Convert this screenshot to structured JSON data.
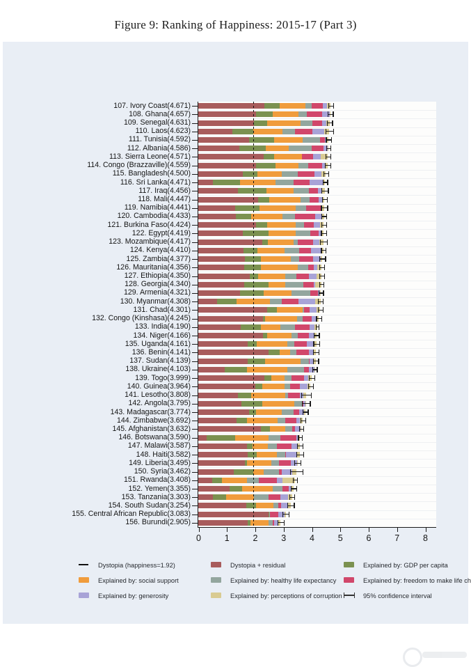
{
  "figure": {
    "title": "Figure 9: Ranking of Happiness: 2015-17 (Part 3)"
  },
  "chart_data": {
    "type": "bar",
    "orientation": "horizontal-stacked",
    "title": "Figure 9: Ranking of Happiness: 2015-17 (Part 3)",
    "xlabel": "",
    "ylabel": "",
    "xlim": [
      0,
      8
    ],
    "xtick_labels": [
      "0",
      "1",
      "2",
      "3",
      "4",
      "5",
      "6",
      "7",
      "8"
    ],
    "grid": "faint horizontal row lines",
    "dystopia_line_value": 1.92,
    "series_order": [
      "dystopia_residual",
      "gdp",
      "social",
      "health",
      "freedom",
      "generosity",
      "corruption"
    ],
    "series_names": {
      "dystopia_residual": "Dystopia + residual",
      "gdp": "Explained by: GDP per capita",
      "social": "Explained by: social support",
      "health": "Explained by: healthy life expectancy",
      "freedom": "Explained by: freedom to make life choices",
      "generosity": "Explained by: generosity",
      "corruption": "Explained by: perceptions of corruption"
    },
    "colors": {
      "dystopia_residual": "#a85c5c",
      "gdp": "#7b9150",
      "social": "#f09c3c",
      "health": "#93a69e",
      "freedom": "#d1476b",
      "generosity": "#a8a3d7",
      "corruption": "#d9cb92",
      "panel_background": "#e9eef5",
      "plot_background": "#fdfdfc",
      "axis": "#1a1a1a"
    },
    "countries": [
      {
        "rank": 107,
        "name": "Ivory Coast",
        "score": "4.671",
        "values": [
          2.33,
          0.54,
          0.9,
          0.23,
          0.4,
          0.15,
          0.121
        ],
        "ci": 0.09
      },
      {
        "rank": 108,
        "name": "Ghana",
        "score": "4.657",
        "values": [
          2.03,
          0.59,
          0.91,
          0.31,
          0.53,
          0.26,
          0.027
        ],
        "ci": 0.09
      },
      {
        "rank": 109,
        "name": "Senegal",
        "score": "4.631",
        "values": [
          1.96,
          0.48,
          1.18,
          0.41,
          0.33,
          0.15,
          0.121
        ],
        "ci": 0.09
      },
      {
        "rank": 110,
        "name": "Laos",
        "score": "4.623",
        "values": [
          1.21,
          0.72,
          1.03,
          0.44,
          0.63,
          0.42,
          0.173
        ],
        "ci": 0.13
      },
      {
        "rank": 111,
        "name": "Tunisia",
        "score": "4.592",
        "values": [
          1.78,
          0.89,
          1.01,
          0.61,
          0.17,
          0.06,
          0.072
        ],
        "ci": 0.09
      },
      {
        "rank": 112,
        "name": "Albania",
        "score": "4.586",
        "values": [
          1.46,
          0.92,
          0.82,
          0.79,
          0.42,
          0.15,
          0.026
        ],
        "ci": 0.08
      },
      {
        "rank": 113,
        "name": "Sierra Leone",
        "score": "4.571",
        "values": [
          2.3,
          0.37,
          0.98,
          0.005,
          0.39,
          0.275,
          0.251
        ],
        "ci": 0.09
      },
      {
        "rank": 114,
        "name": "Congo (Brazzaville)",
        "score": "4.559",
        "values": [
          2.04,
          0.68,
          0.81,
          0.34,
          0.51,
          0.09,
          0.089
        ],
        "ci": 0.1
      },
      {
        "rank": 115,
        "name": "Bangladesh",
        "score": "4.500",
        "values": [
          1.56,
          0.53,
          0.85,
          0.58,
          0.58,
          0.24,
          0.16
        ],
        "ci": 0.08
      },
      {
        "rank": 116,
        "name": "Sri Lanka",
        "score": "4.471",
        "values": [
          0.52,
          0.95,
          1.26,
          0.63,
          0.56,
          0.5,
          0.051
        ],
        "ci": 0.08
      },
      {
        "rank": 117,
        "name": "Iraq",
        "score": "4.456",
        "values": [
          1.39,
          1.01,
          0.97,
          0.54,
          0.3,
          0.15,
          0.096
        ],
        "ci": 0.12
      },
      {
        "rank": 118,
        "name": "Mali",
        "score": "4.447",
        "values": [
          2.12,
          0.39,
          1.1,
          0.31,
          0.33,
          0.15,
          0.047
        ],
        "ci": 0.09
      },
      {
        "rank": 119,
        "name": "Namibia",
        "score": "4.441",
        "values": [
          1.29,
          0.87,
          1.28,
          0.37,
          0.52,
          0.05,
          0.061
        ],
        "ci": 0.11
      },
      {
        "rank": 120,
        "name": "Cambodia",
        "score": "4.433",
        "values": [
          1.32,
          0.55,
          1.09,
          0.46,
          0.7,
          0.26,
          0.053
        ],
        "ci": 0.09
      },
      {
        "rank": 121,
        "name": "Burkina Faso",
        "score": "4.424",
        "values": [
          2.04,
          0.39,
          1.0,
          0.3,
          0.35,
          0.21,
          0.134
        ],
        "ci": 0.09
      },
      {
        "rank": 122,
        "name": "Egypt",
        "score": "4.419",
        "values": [
          1.57,
          0.92,
          0.94,
          0.52,
          0.29,
          0.08,
          0.099
        ],
        "ci": 0.09
      },
      {
        "rank": 123,
        "name": "Mozambique",
        "score": "4.417",
        "values": [
          2.25,
          0.2,
          0.9,
          0.17,
          0.53,
          0.21,
          0.157
        ],
        "ci": 0.13
      },
      {
        "rank": 124,
        "name": "Kenya",
        "score": "4.410",
        "values": [
          1.6,
          0.49,
          0.95,
          0.51,
          0.43,
          0.37,
          0.06
        ],
        "ci": 0.08
      },
      {
        "rank": 125,
        "name": "Zambia",
        "score": "4.377",
        "values": [
          1.65,
          0.56,
          1.05,
          0.3,
          0.5,
          0.25,
          0.067
        ],
        "ci": 0.1
      },
      {
        "rank": 126,
        "name": "Mauritania",
        "score": "4.356",
        "values": [
          1.61,
          0.59,
          1.31,
          0.37,
          0.19,
          0.13,
          0.156
        ],
        "ci": 0.09
      },
      {
        "rank": 127,
        "name": "Ethiopia",
        "score": "4.350",
        "values": [
          1.81,
          0.31,
          0.95,
          0.39,
          0.45,
          0.27,
          0.17
        ],
        "ci": 0.09
      },
      {
        "rank": 128,
        "name": "Georgia",
        "score": "4.340",
        "values": [
          1.62,
          0.85,
          0.59,
          0.64,
          0.38,
          0.04,
          0.22
        ],
        "ci": 0.08
      },
      {
        "rank": 129,
        "name": "Armenia",
        "score": "4.321",
        "values": [
          1.48,
          0.82,
          0.99,
          0.67,
          0.26,
          0.08,
          0.021
        ],
        "ci": 0.08
      },
      {
        "rank": 130,
        "name": "Myanmar",
        "score": "4.308",
        "values": [
          0.67,
          0.68,
          1.17,
          0.43,
          0.58,
          0.6,
          0.178
        ],
        "ci": 0.09
      },
      {
        "rank": 131,
        "name": "Chad",
        "score": "4.301",
        "values": [
          2.42,
          0.36,
          0.91,
          0.05,
          0.19,
          0.25,
          0.121
        ],
        "ci": 0.09
      },
      {
        "rank": 132,
        "name": "Congo (Kinshasa)",
        "score": "4.245",
        "values": [
          2.28,
          0.07,
          1.13,
          0.2,
          0.31,
          0.2,
          0.055
        ],
        "ci": 0.09
      },
      {
        "rank": 133,
        "name": "India",
        "score": "4.190",
        "values": [
          1.5,
          0.72,
          0.68,
          0.5,
          0.53,
          0.17,
          0.09
        ],
        "ci": 0.05
      },
      {
        "rank": 134,
        "name": "Niger",
        "score": "4.166",
        "values": [
          2.28,
          0.14,
          0.87,
          0.22,
          0.39,
          0.17,
          0.096
        ],
        "ci": 0.09
      },
      {
        "rank": 135,
        "name": "Uganda",
        "score": "4.161",
        "values": [
          1.74,
          0.32,
          1.09,
          0.24,
          0.45,
          0.26,
          0.061
        ],
        "ci": 0.1
      },
      {
        "rank": 136,
        "name": "Benin",
        "score": "4.141",
        "values": [
          2.48,
          0.38,
          0.37,
          0.24,
          0.44,
          0.16,
          0.071
        ],
        "ci": 0.1
      },
      {
        "rank": 137,
        "name": "Sudan",
        "score": "4.139",
        "values": [
          1.75,
          0.61,
          1.24,
          0.31,
          0.02,
          0.13,
          0.079
        ],
        "ci": 0.09
      },
      {
        "rank": 138,
        "name": "Ukraine",
        "score": "4.103",
        "values": [
          0.93,
          0.79,
          1.41,
          0.61,
          0.16,
          0.19,
          0.013
        ],
        "ci": 0.08
      },
      {
        "rank": 139,
        "name": "Togo",
        "score": "3.999",
        "values": [
          2.32,
          0.26,
          0.47,
          0.25,
          0.43,
          0.16,
          0.109
        ],
        "ci": 0.09
      },
      {
        "rank": 140,
        "name": "Guinea",
        "score": "3.964",
        "values": [
          2.01,
          0.24,
          0.79,
          0.19,
          0.35,
          0.27,
          0.114
        ],
        "ci": 0.09
      },
      {
        "rank": 141,
        "name": "Lesotho",
        "score": "3.808",
        "values": [
          1.39,
          0.47,
          1.22,
          0.08,
          0.42,
          0.12,
          0.108
        ],
        "ci": 0.17
      },
      {
        "rank": 142,
        "name": "Angola",
        "score": "3.795",
        "values": [
          1.53,
          0.73,
          1.12,
          0.27,
          0.06,
          0.08,
          0.005
        ],
        "ci": 0.14
      },
      {
        "rank": 143,
        "name": "Madagascar",
        "score": "3.774",
        "values": [
          1.78,
          0.26,
          0.91,
          0.4,
          0.22,
          0.15,
          0.054
        ],
        "ci": 0.09
      },
      {
        "rank": 144,
        "name": "Zimbabwe",
        "score": "3.692",
        "values": [
          1.36,
          0.36,
          1.09,
          0.25,
          0.4,
          0.13,
          0.102
        ],
        "ci": 0.09
      },
      {
        "rank": 145,
        "name": "Afghanistan",
        "score": "3.632",
        "values": [
          2.2,
          0.33,
          0.54,
          0.25,
          0.09,
          0.19,
          0.032
        ],
        "ci": 0.08
      },
      {
        "rank": 146,
        "name": "Botswana",
        "score": "3.590",
        "values": [
          0.29,
          1.02,
          1.17,
          0.42,
          0.56,
          0.04,
          0.09
        ],
        "ci": 0.07
      },
      {
        "rank": 147,
        "name": "Malawi",
        "score": "3.587",
        "values": [
          1.73,
          0.19,
          0.54,
          0.31,
          0.53,
          0.21,
          0.077
        ],
        "ci": 0.1
      },
      {
        "rank": 148,
        "name": "Haiti",
        "score": "3.582",
        "values": [
          1.74,
          0.32,
          0.71,
          0.29,
          0.03,
          0.39,
          0.102
        ],
        "ci": 0.12
      },
      {
        "rank": 149,
        "name": "Liberia",
        "score": "3.495",
        "values": [
          1.64,
          0.08,
          0.86,
          0.27,
          0.42,
          0.21,
          0.015
        ],
        "ci": 0.12
      },
      {
        "rank": 150,
        "name": "Syria",
        "score": "3.462",
        "values": [
          1.24,
          0.69,
          0.38,
          0.54,
          0.09,
          0.38,
          0.142
        ],
        "ci": 0.22
      },
      {
        "rank": 151,
        "name": "Rwanda",
        "score": "3.408",
        "values": [
          0.5,
          0.33,
          0.9,
          0.4,
          0.64,
          0.2,
          0.438
        ],
        "ci": 0.08
      },
      {
        "rank": 152,
        "name": "Yemen",
        "score": "3.355",
        "values": [
          1.11,
          0.44,
          1.07,
          0.34,
          0.24,
          0.08,
          0.075
        ],
        "ci": 0.1
      },
      {
        "rank": 153,
        "name": "Tanzania",
        "score": "3.303",
        "values": [
          0.52,
          0.46,
          0.99,
          0.5,
          0.42,
          0.27,
          0.143
        ],
        "ci": 0.09
      },
      {
        "rank": 154,
        "name": "South Sudan",
        "score": "3.254",
        "values": [
          1.69,
          0.34,
          0.61,
          0.18,
          0.11,
          0.22,
          0.104
        ],
        "ci": 0.12
      },
      {
        "rank": 155,
        "name": "Central African Republic",
        "score": "3.083",
        "values": [
          2.49,
          0.02,
          0.0,
          0.01,
          0.31,
          0.22,
          0.033
        ],
        "ci": 0.11
      },
      {
        "rank": 156,
        "name": "Burundi",
        "score": "2.905",
        "values": [
          1.752,
          0.091,
          0.627,
          0.145,
          0.065,
          0.149,
          0.076
        ],
        "ci": 0.11
      }
    ]
  },
  "legend": {
    "items": [
      {
        "icon": "dystopia-line",
        "label": "Dystopia (happiness=1.92)",
        "col": 0,
        "row": 0
      },
      {
        "icon": "swatch",
        "key": "social",
        "label": "Explained by: social support",
        "col": 0,
        "row": 1
      },
      {
        "icon": "swatch",
        "key": "generosity",
        "label": "Explained by: generosity",
        "col": 0,
        "row": 2
      },
      {
        "icon": "swatch",
        "key": "dystopia_residual",
        "label": "Dystopia + residual",
        "col": 1,
        "row": 0
      },
      {
        "icon": "swatch",
        "key": "health",
        "label": "Explained by: healthy life expectancy",
        "col": 1,
        "row": 1
      },
      {
        "icon": "swatch",
        "key": "corruption",
        "label": "Explained by: perceptions of corruption",
        "col": 1,
        "row": 2
      },
      {
        "icon": "swatch",
        "key": "gdp",
        "label": "Explained by: GDP per capita",
        "col": 2,
        "row": 0
      },
      {
        "icon": "swatch",
        "key": "freedom",
        "label": "Explained by: freedom to make life choices",
        "col": 2,
        "row": 1
      },
      {
        "icon": "error-bar",
        "label": "95% confidence interval",
        "col": 2,
        "row": 2
      }
    ]
  },
  "icons": {
    "watermark": "faint circular logo, bottom-right, mostly cropped"
  }
}
